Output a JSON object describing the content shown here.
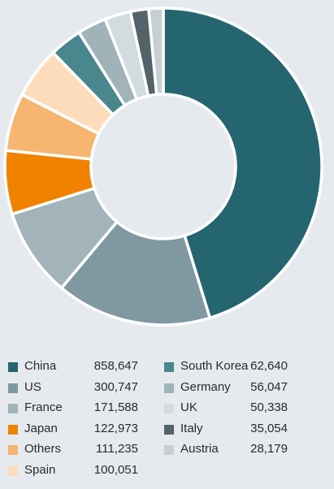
{
  "chart_data": {
    "type": "pie",
    "donut": true,
    "slices": [
      {
        "label": "China",
        "value": 858647,
        "display": "858,647",
        "color": "#256570"
      },
      {
        "label": "US",
        "value": 300747,
        "display": "300,747",
        "color": "#7f98a1"
      },
      {
        "label": "France",
        "value": 171588,
        "display": "171,588",
        "color": "#a2b4ba"
      },
      {
        "label": "Japan",
        "value": 122973,
        "display": "122,973",
        "color": "#f08200"
      },
      {
        "label": "Others",
        "value": 111235,
        "display": "111,235",
        "color": "#f6b671"
      },
      {
        "label": "Spain",
        "value": 100051,
        "display": "100,051",
        "color": "#fddcbc"
      },
      {
        "label": "South Korea",
        "value": 62640,
        "display": "62,640",
        "color": "#4a868e"
      },
      {
        "label": "Germany",
        "value": 56047,
        "display": "56,047",
        "color": "#9fb3b8"
      },
      {
        "label": "UK",
        "value": 50338,
        "display": "50,338",
        "color": "#d2dcdf"
      },
      {
        "label": "Italy",
        "value": 35054,
        "display": "35,054",
        "color": "#54636a"
      },
      {
        "label": "Austria",
        "value": 28179,
        "display": "28,179",
        "color": "#c8cfd3"
      }
    ],
    "legend_placement": "bottom",
    "background": "#e6eaee"
  }
}
